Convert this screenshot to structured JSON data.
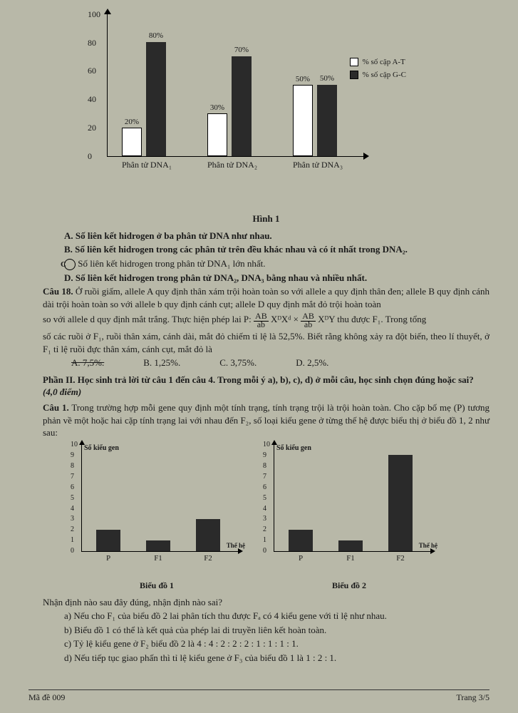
{
  "chart1": {
    "type": "bar",
    "ylim": [
      0,
      100
    ],
    "ytick_step": 20,
    "yticks": [
      0,
      20,
      40,
      60,
      80,
      100
    ],
    "groups": [
      {
        "xlabel": "Phân tử DNA₁",
        "white": {
          "val": 20,
          "label": "20%"
        },
        "black": {
          "val": 80,
          "label": "80%"
        }
      },
      {
        "xlabel": "Phân tử DNA₂",
        "white": {
          "val": 30,
          "label": "30%"
        },
        "black": {
          "val": 70,
          "label": "70%"
        }
      },
      {
        "xlabel": "Phân tử DNA₃",
        "white": {
          "val": 50,
          "label": "50%"
        },
        "black": {
          "val": 50,
          "label": "50%"
        }
      }
    ],
    "legend": [
      {
        "swatch": "white",
        "label": "% số cặp A-T"
      },
      {
        "swatch": "black",
        "label": "% số cặp G-C"
      }
    ],
    "bar_white_color": "#ffffff",
    "bar_black_color": "#2a2a2a",
    "caption": "Hình 1"
  },
  "optsA": "A. Số liên kết hidrogen ở ba phân tử DNA như nhau.",
  "optsB": "B. Số liên kết hidrogen trong các phân tử trên đều khác nhau và có ít nhất trong DNA₂.",
  "optsC_letter": "C",
  "optsC_text": "Số liên kết hidrogen trong phân tử DNA₁ lớn nhất.",
  "optsD": "D. Số liên kết hidrogen trong phân tử DNA₂, DNA₃ bằng nhau và nhiều nhất.",
  "q18_lead": "Câu 18. Ở ruồi giấm, allele A quy định thân xám trội hoàn toàn so với allele a quy định thân đen; allele B quy định cánh dài trội hoàn toàn so với allele b quy định cánh cụt; allele D quy định mắt đỏ trội hoàn toàn",
  "q18_line2_a": "so với allele d quy định mắt trắng. Thực hiện phép lai P: ",
  "q18_frac1_n": "AB",
  "q18_frac1_d": "ab",
  "q18_mid1": " XᴰXᵈ × ",
  "q18_frac2_n": "AB",
  "q18_frac2_d": "ab",
  "q18_mid2": " XᴰY thu được F₁. Trong tổng",
  "q18_line3": "số các ruồi ở F₁, ruồi thân xám, cánh dài, mắt đỏ chiếm tỉ lệ là 52,5%. Biết rằng không xảy ra đột biến, theo lí thuyết, ở F₁ tỉ lệ ruồi đực thân xám, cánh cụt, mắt đỏ là",
  "q18_opts": {
    "A": "A. 7,5%.",
    "B": "B. 1,25%.",
    "C": "C. 3,75%.",
    "D": "D. 2,5%."
  },
  "section2_title": "Phần II. Học sinh trả lời từ câu 1 đến câu 4. Trong mỗi ý a), b), c), d) ở mỗi câu, học sinh chọn đúng hoặc sai? ",
  "section2_pts": "(4,0 điểm)",
  "q1_lead": "Câu 1. Trong trường hợp mỗi gene quy định một tính trạng, tính trạng trội là trội hoàn toàn. Cho cặp bố mẹ (P) tương phản về một hoặc hai cặp tính trạng lai với nhau đến F₂, số loại kiểu gene ở từng thế hệ được biểu thị ở biểu đồ 1, 2 như sau:",
  "chart2": {
    "ylabel": "Số kiểu gen",
    "xlabel": "Thế hệ",
    "ymax": 10,
    "yticks": [
      0,
      1,
      2,
      3,
      4,
      5,
      6,
      7,
      8,
      9,
      10
    ],
    "panels": [
      {
        "title": "Biểu đồ 1",
        "bars": [
          {
            "x": "P",
            "v": 2
          },
          {
            "x": "F1",
            "v": 1
          },
          {
            "x": "F2",
            "v": 3
          }
        ]
      },
      {
        "title": "Biểu đồ 2",
        "bars": [
          {
            "x": "P",
            "v": 2
          },
          {
            "x": "F1",
            "v": 1
          },
          {
            "x": "F2",
            "v": 9
          }
        ]
      }
    ],
    "bar_color": "#2a2a2a"
  },
  "q1_prompt": "Nhận định nào sau đây đúng, nhận định nào sai?",
  "q1a": "a) Nếu cho F₁ của biểu đồ 2 lai phân tích thu được Fₐ có 4 kiểu gene với tỉ lệ như nhau.",
  "q1b": "b) Biểu đồ 1 có thể là kết quả của phép lai di truyền liên kết hoàn toàn.",
  "q1c": "c) Tỷ lệ kiểu gene ở F₂ biểu đồ 2 là 4 : 4 : 2 : 2 : 2 : 1 : 1 : 1 : 1.",
  "q1d": "d) Nếu tiếp tục giao phấn thì tỉ lệ kiểu gene ở F₃ của biểu đồ 1 là 1 : 2 : 1.",
  "footer_left": "Mã đề 009",
  "footer_right": "Trang 3/5"
}
